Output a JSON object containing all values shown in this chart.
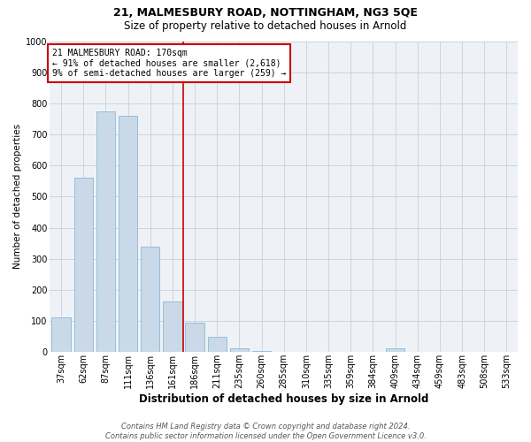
{
  "title1": "21, MALMESBURY ROAD, NOTTINGHAM, NG3 5QE",
  "title2": "Size of property relative to detached houses in Arnold",
  "xlabel": "Distribution of detached houses by size in Arnold",
  "ylabel": "Number of detached properties",
  "footer1": "Contains HM Land Registry data © Crown copyright and database right 2024.",
  "footer2": "Contains public sector information licensed under the Open Government Licence v3.0.",
  "annotation_line1": "21 MALMESBURY ROAD: 170sqm",
  "annotation_line2": "← 91% of detached houses are smaller (2,618)",
  "annotation_line3": "9% of semi-detached houses are larger (259) →",
  "bar_color": "#c9d9e8",
  "bar_edge_color": "#7bafd4",
  "vline_color": "#cc0000",
  "categories": [
    "37sqm",
    "62sqm",
    "87sqm",
    "111sqm",
    "136sqm",
    "161sqm",
    "186sqm",
    "211sqm",
    "235sqm",
    "260sqm",
    "285sqm",
    "310sqm",
    "335sqm",
    "359sqm",
    "384sqm",
    "409sqm",
    "434sqm",
    "459sqm",
    "483sqm",
    "508sqm",
    "533sqm"
  ],
  "values": [
    110,
    560,
    775,
    760,
    340,
    163,
    93,
    50,
    13,
    3,
    0,
    0,
    0,
    0,
    0,
    13,
    0,
    0,
    0,
    0,
    0
  ],
  "vline_position": 5.5,
  "ylim": [
    0,
    1000
  ],
  "yticks": [
    0,
    100,
    200,
    300,
    400,
    500,
    600,
    700,
    800,
    900,
    1000
  ],
  "grid_color": "#c8d0d8",
  "bg_color": "#eef2f6",
  "title1_fontsize": 9,
  "title2_fontsize": 8.5,
  "xlabel_fontsize": 8.5,
  "ylabel_fontsize": 7.5,
  "tick_fontsize": 7,
  "annotation_fontsize": 7,
  "footer_fontsize": 6
}
